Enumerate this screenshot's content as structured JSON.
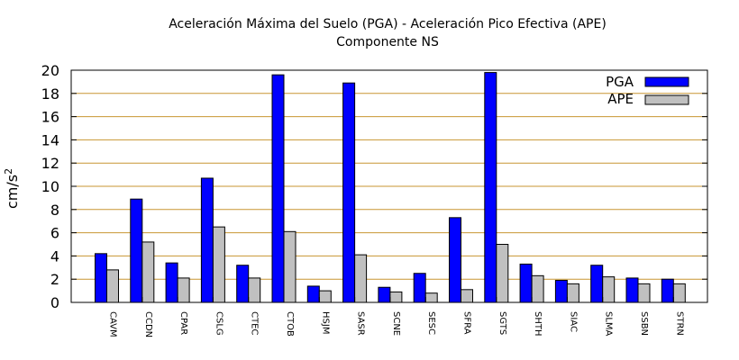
{
  "chart_data": {
    "type": "bar",
    "title": "Aceleración Máxima del Suelo (PGA) -  Aceleración Pico Efectiva (APE)",
    "subtitle": "Componente NS",
    "ylabel": "cm/s",
    "ylabel_sup": "2",
    "xlabel": "",
    "ylim": [
      0,
      20
    ],
    "yticks": [
      0,
      2,
      4,
      6,
      8,
      10,
      12,
      14,
      16,
      18,
      20
    ],
    "grid": true,
    "legend_position": "top-right",
    "categories": [
      "CAVM",
      "CCDN",
      "CPAR",
      "CSLG",
      "CTEC",
      "CTOB",
      "HSJM",
      "SASR",
      "SCNE",
      "SESC",
      "SFRA",
      "SGTS",
      "SHTH",
      "SIAC",
      "SLMA",
      "SSBN",
      "STRN"
    ],
    "series": [
      {
        "name": "PGA",
        "color": "#0000ff",
        "values": [
          4.2,
          8.9,
          3.4,
          10.7,
          3.2,
          19.6,
          1.4,
          18.9,
          1.3,
          2.5,
          7.3,
          19.8,
          3.3,
          1.9,
          3.2,
          2.1,
          2.0
        ]
      },
      {
        "name": "APE",
        "color": "#c0c0c0",
        "values": [
          2.8,
          5.2,
          2.1,
          6.5,
          2.1,
          6.1,
          1.0,
          4.1,
          0.9,
          0.8,
          1.1,
          5.0,
          2.3,
          1.6,
          2.2,
          1.6,
          1.6
        ]
      }
    ],
    "grid_color": "#c89632"
  }
}
